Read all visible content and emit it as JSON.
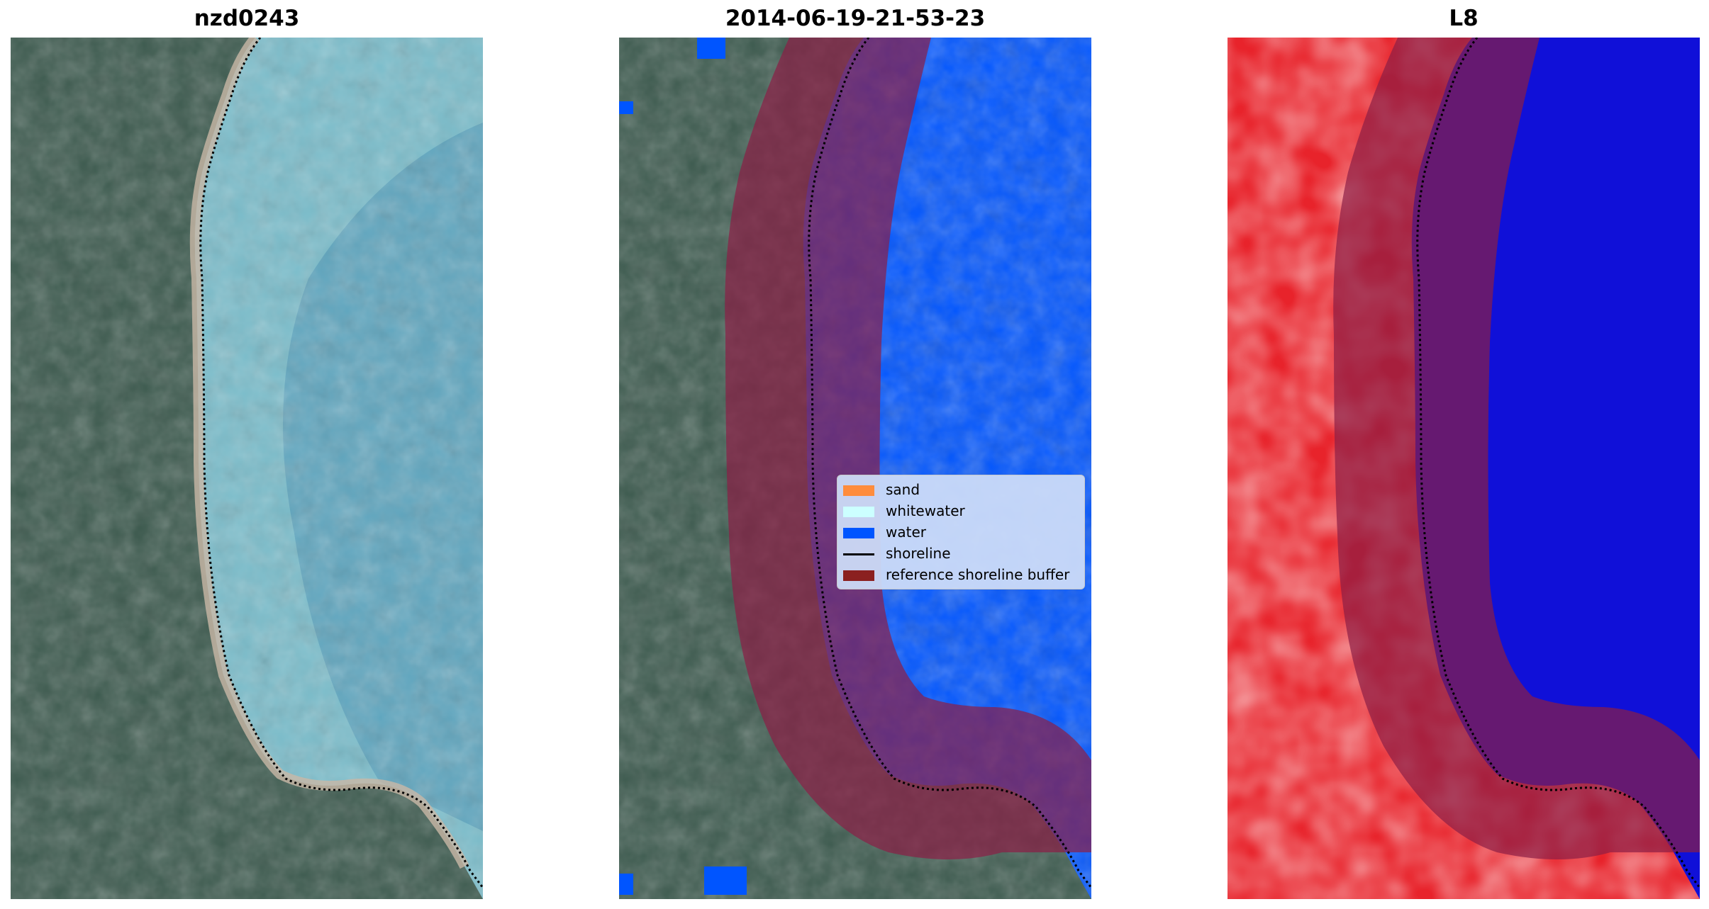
{
  "panels": [
    {
      "title": "nzd0243"
    },
    {
      "title": "2014-06-19-21-53-23"
    },
    {
      "title": "L8"
    }
  ],
  "legend": {
    "items": [
      {
        "label": "sand",
        "color": "#ff8c3c",
        "kind": "patch"
      },
      {
        "label": "whitewater",
        "color": "#ccffff",
        "kind": "patch"
      },
      {
        "label": "water",
        "color": "#0055ff",
        "kind": "patch"
      },
      {
        "label": "shoreline",
        "color": "#000000",
        "kind": "line"
      },
      {
        "label": "reference shoreline buffer",
        "color": "#8b2020",
        "kind": "patch"
      }
    ]
  },
  "colors": {
    "land": "#3c5a4e",
    "sea": "#5fa6bf",
    "water": "#0055ff",
    "buffer": "#8b1e46",
    "index_positive": "#e8232b",
    "index_negative": "#1010d8"
  }
}
